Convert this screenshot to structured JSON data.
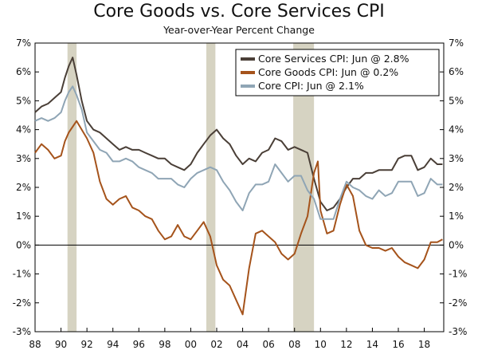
{
  "chart_data": {
    "type": "line",
    "title": "Core Goods vs. Core Services CPI",
    "subtitle": "Year-over-Year Percent Change",
    "xlabel": "",
    "ylabel": "",
    "xlim": [
      1988.0,
      2019.5
    ],
    "ylim": [
      -3,
      7
    ],
    "y_ticks": [
      "7%",
      "6%",
      "5%",
      "4%",
      "3%",
      "2%",
      "1%",
      "0%",
      "-1%",
      "-2%",
      "-3%"
    ],
    "y_tick_values": [
      7,
      6,
      5,
      4,
      3,
      2,
      1,
      0,
      -1,
      -2,
      -3
    ],
    "x_ticks": [
      "88",
      "90",
      "92",
      "94",
      "96",
      "98",
      "00",
      "02",
      "04",
      "06",
      "08",
      "10",
      "12",
      "14",
      "16",
      "18"
    ],
    "x_tick_values": [
      1988,
      1990,
      1992,
      1994,
      1996,
      1998,
      2000,
      2002,
      2004,
      2006,
      2008,
      2010,
      2012,
      2014,
      2016,
      2018
    ],
    "recessions": [
      [
        1990.5,
        1991.2
      ],
      [
        2001.2,
        2001.9
      ],
      [
        2007.9,
        2009.5
      ]
    ],
    "legend_position": "top-right",
    "dual_y_axis": true,
    "zero_line": true,
    "series": [
      {
        "name": "Core Services CPI: Jun @ 2.8%",
        "color": "#4a3f37",
        "points": [
          [
            1988,
            4.6
          ],
          [
            1988.5,
            4.8
          ],
          [
            1989,
            4.9
          ],
          [
            1989.5,
            5.1
          ],
          [
            1990,
            5.3
          ],
          [
            1990.3,
            5.8
          ],
          [
            1990.6,
            6.2
          ],
          [
            1990.9,
            6.5
          ],
          [
            1991.2,
            5.9
          ],
          [
            1991.6,
            5.0
          ],
          [
            1992,
            4.3
          ],
          [
            1992.5,
            4.0
          ],
          [
            1993,
            3.9
          ],
          [
            1993.5,
            3.7
          ],
          [
            1994,
            3.5
          ],
          [
            1994.5,
            3.3
          ],
          [
            1995,
            3.4
          ],
          [
            1995.5,
            3.3
          ],
          [
            1996,
            3.3
          ],
          [
            1996.5,
            3.2
          ],
          [
            1997,
            3.1
          ],
          [
            1997.5,
            3.0
          ],
          [
            1998,
            3.0
          ],
          [
            1998.5,
            2.8
          ],
          [
            1999,
            2.7
          ],
          [
            1999.5,
            2.6
          ],
          [
            2000,
            2.8
          ],
          [
            2000.5,
            3.2
          ],
          [
            2001,
            3.5
          ],
          [
            2001.5,
            3.8
          ],
          [
            2002,
            4.0
          ],
          [
            2002.5,
            3.7
          ],
          [
            2003,
            3.5
          ],
          [
            2003.5,
            3.1
          ],
          [
            2004,
            2.8
          ],
          [
            2004.5,
            3.0
          ],
          [
            2005,
            2.9
          ],
          [
            2005.5,
            3.2
          ],
          [
            2006,
            3.3
          ],
          [
            2006.5,
            3.7
          ],
          [
            2007,
            3.6
          ],
          [
            2007.5,
            3.3
          ],
          [
            2008,
            3.4
          ],
          [
            2008.5,
            3.3
          ],
          [
            2009,
            3.2
          ],
          [
            2009.5,
            2.3
          ],
          [
            2010,
            1.5
          ],
          [
            2010.5,
            1.2
          ],
          [
            2011,
            1.3
          ],
          [
            2011.5,
            1.6
          ],
          [
            2012,
            2.0
          ],
          [
            2012.5,
            2.3
          ],
          [
            2013,
            2.3
          ],
          [
            2013.5,
            2.5
          ],
          [
            2014,
            2.5
          ],
          [
            2014.5,
            2.6
          ],
          [
            2015,
            2.6
          ],
          [
            2015.5,
            2.6
          ],
          [
            2016,
            3.0
          ],
          [
            2016.5,
            3.1
          ],
          [
            2017,
            3.1
          ],
          [
            2017.5,
            2.6
          ],
          [
            2018,
            2.7
          ],
          [
            2018.5,
            3.0
          ],
          [
            2019,
            2.8
          ],
          [
            2019.4,
            2.8
          ]
        ]
      },
      {
        "name": "Core Goods CPI: Jun @ 0.2%",
        "color": "#a5531b",
        "points": [
          [
            1988,
            3.2
          ],
          [
            1988.5,
            3.5
          ],
          [
            1989,
            3.3
          ],
          [
            1989.5,
            3.0
          ],
          [
            1990,
            3.1
          ],
          [
            1990.3,
            3.6
          ],
          [
            1990.6,
            3.9
          ],
          [
            1990.9,
            4.1
          ],
          [
            1991.2,
            4.3
          ],
          [
            1991.6,
            4.0
          ],
          [
            1992,
            3.7
          ],
          [
            1992.5,
            3.2
          ],
          [
            1993,
            2.2
          ],
          [
            1993.5,
            1.6
          ],
          [
            1994,
            1.4
          ],
          [
            1994.5,
            1.6
          ],
          [
            1995,
            1.7
          ],
          [
            1995.5,
            1.3
          ],
          [
            1996,
            1.2
          ],
          [
            1996.5,
            1.0
          ],
          [
            1997,
            0.9
          ],
          [
            1997.5,
            0.5
          ],
          [
            1998,
            0.2
          ],
          [
            1998.5,
            0.3
          ],
          [
            1999,
            0.7
          ],
          [
            1999.5,
            0.3
          ],
          [
            2000,
            0.2
          ],
          [
            2000.5,
            0.5
          ],
          [
            2001,
            0.8
          ],
          [
            2001.5,
            0.3
          ],
          [
            2002,
            -0.7
          ],
          [
            2002.5,
            -1.2
          ],
          [
            2003,
            -1.4
          ],
          [
            2003.5,
            -1.9
          ],
          [
            2004,
            -2.4
          ],
          [
            2004.5,
            -0.8
          ],
          [
            2005,
            0.4
          ],
          [
            2005.5,
            0.5
          ],
          [
            2006,
            0.3
          ],
          [
            2006.5,
            0.1
          ],
          [
            2007,
            -0.3
          ],
          [
            2007.5,
            -0.5
          ],
          [
            2008,
            -0.3
          ],
          [
            2008.5,
            0.4
          ],
          [
            2009,
            1.0
          ],
          [
            2009.5,
            2.5
          ],
          [
            2009.8,
            2.9
          ],
          [
            2010,
            1.2
          ],
          [
            2010.5,
            0.4
          ],
          [
            2011,
            0.5
          ],
          [
            2011.5,
            1.4
          ],
          [
            2012,
            2.1
          ],
          [
            2012.5,
            1.7
          ],
          [
            2013,
            0.5
          ],
          [
            2013.5,
            0.0
          ],
          [
            2014,
            -0.1
          ],
          [
            2014.5,
            -0.1
          ],
          [
            2015,
            -0.2
          ],
          [
            2015.5,
            -0.1
          ],
          [
            2016,
            -0.4
          ],
          [
            2016.5,
            -0.6
          ],
          [
            2017,
            -0.7
          ],
          [
            2017.5,
            -0.8
          ],
          [
            2018,
            -0.5
          ],
          [
            2018.5,
            0.1
          ],
          [
            2019,
            0.1
          ],
          [
            2019.4,
            0.2
          ]
        ]
      },
      {
        "name": "Core CPI: Jun @ 2.1%",
        "color": "#8fa5b5",
        "points": [
          [
            1988,
            4.3
          ],
          [
            1988.5,
            4.4
          ],
          [
            1989,
            4.3
          ],
          [
            1989.5,
            4.4
          ],
          [
            1990,
            4.6
          ],
          [
            1990.3,
            5.0
          ],
          [
            1990.6,
            5.3
          ],
          [
            1990.9,
            5.5
          ],
          [
            1991.2,
            5.2
          ],
          [
            1991.6,
            4.7
          ],
          [
            1992,
            3.9
          ],
          [
            1992.5,
            3.6
          ],
          [
            1993,
            3.3
          ],
          [
            1993.5,
            3.2
          ],
          [
            1994,
            2.9
          ],
          [
            1994.5,
            2.9
          ],
          [
            1995,
            3.0
          ],
          [
            1995.5,
            2.9
          ],
          [
            1996,
            2.7
          ],
          [
            1996.5,
            2.6
          ],
          [
            1997,
            2.5
          ],
          [
            1997.5,
            2.3
          ],
          [
            1998,
            2.3
          ],
          [
            1998.5,
            2.3
          ],
          [
            1999,
            2.1
          ],
          [
            1999.5,
            2.0
          ],
          [
            2000,
            2.3
          ],
          [
            2000.5,
            2.5
          ],
          [
            2001,
            2.6
          ],
          [
            2001.5,
            2.7
          ],
          [
            2002,
            2.6
          ],
          [
            2002.5,
            2.2
          ],
          [
            2003,
            1.9
          ],
          [
            2003.5,
            1.5
          ],
          [
            2004,
            1.2
          ],
          [
            2004.5,
            1.8
          ],
          [
            2005,
            2.1
          ],
          [
            2005.5,
            2.1
          ],
          [
            2006,
            2.2
          ],
          [
            2006.5,
            2.8
          ],
          [
            2007,
            2.5
          ],
          [
            2007.5,
            2.2
          ],
          [
            2008,
            2.4
          ],
          [
            2008.5,
            2.4
          ],
          [
            2009,
            1.9
          ],
          [
            2009.5,
            1.6
          ],
          [
            2010,
            0.9
          ],
          [
            2010.5,
            0.9
          ],
          [
            2011,
            0.9
          ],
          [
            2011.5,
            1.6
          ],
          [
            2012,
            2.2
          ],
          [
            2012.5,
            2.0
          ],
          [
            2013,
            1.9
          ],
          [
            2013.5,
            1.7
          ],
          [
            2014,
            1.6
          ],
          [
            2014.5,
            1.9
          ],
          [
            2015,
            1.7
          ],
          [
            2015.5,
            1.8
          ],
          [
            2016,
            2.2
          ],
          [
            2016.5,
            2.2
          ],
          [
            2017,
            2.2
          ],
          [
            2017.5,
            1.7
          ],
          [
            2018,
            1.8
          ],
          [
            2018.5,
            2.3
          ],
          [
            2019,
            2.1
          ],
          [
            2019.4,
            2.1
          ]
        ]
      }
    ]
  }
}
